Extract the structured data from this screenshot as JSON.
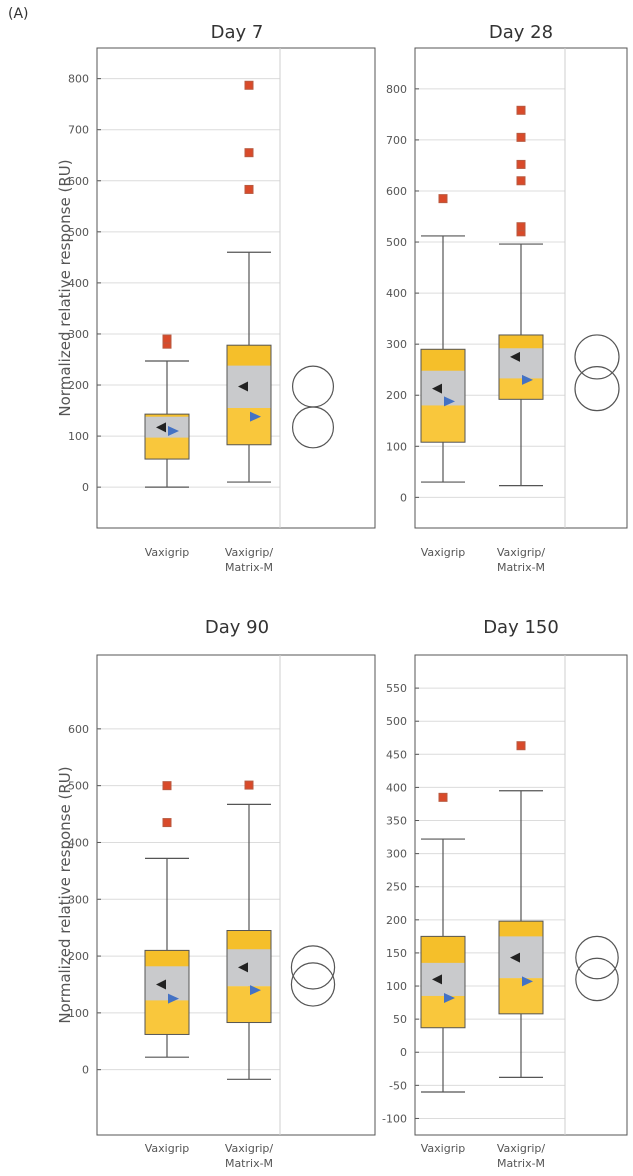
{
  "figure": {
    "panel_label": "(A)"
  },
  "colors": {
    "box_lower": "#f9c73c",
    "box_ci": "#c9cacc",
    "box_upper": "#f5bf2a",
    "box_edge": "#555555",
    "outlier": "#d94a2a",
    "outlier_edge": "#b85a40",
    "mean_marker": "#222222",
    "median_marker": "#4472c4",
    "grid": "#dcdcdc",
    "frame": "#555555"
  },
  "chart_data": [
    {
      "type": "boxplot",
      "title": "Day 7",
      "ylabel": "Normalized relative response (RU)",
      "ylim": [
        -80,
        860
      ],
      "yticks": [
        0,
        100,
        200,
        300,
        400,
        500,
        600,
        700,
        800
      ],
      "categories": [
        "Vaxigrip",
        "Vaxigrip/\nMatrix-M"
      ],
      "category_lines": [
        [
          "Vaxigrip"
        ],
        [
          "Vaxigrip/",
          "Matrix-M"
        ]
      ],
      "boxes": [
        {
          "whisker_low": 0,
          "q1": 55,
          "median": 98,
          "q3": 143,
          "whisker_high": 247,
          "ci_low": 97,
          "ci_high": 138,
          "mean": 117,
          "median_marker": 110,
          "outliers": [
            280,
            290
          ]
        },
        {
          "whisker_low": 10,
          "q1": 83,
          "median": 155,
          "q3": 278,
          "whisker_high": 460,
          "ci_low": 155,
          "ci_high": 238,
          "mean": 197,
          "median_marker": 138,
          "outliers": [
            583,
            655,
            787
          ]
        }
      ],
      "comparison_circles": [
        {
          "center": 197,
          "radius": 40
        },
        {
          "center": 117,
          "radius": 40
        }
      ]
    },
    {
      "type": "boxplot",
      "title": "Day 28",
      "ylabel": "",
      "ylim": [
        -60,
        880
      ],
      "yticks": [
        0,
        100,
        200,
        300,
        400,
        500,
        600,
        700,
        800
      ],
      "categories": [
        "Vaxigrip",
        "Vaxigrip/\nMatrix-M"
      ],
      "category_lines": [
        [
          "Vaxigrip"
        ],
        [
          "Vaxigrip/",
          "Matrix-M"
        ]
      ],
      "boxes": [
        {
          "whisker_low": 30,
          "q1": 108,
          "median": 180,
          "q3": 290,
          "whisker_high": 512,
          "ci_low": 180,
          "ci_high": 248,
          "mean": 213,
          "median_marker": 188,
          "outliers": [
            585
          ]
        },
        {
          "whisker_low": 23,
          "q1": 192,
          "median": 233,
          "q3": 318,
          "whisker_high": 496,
          "ci_low": 233,
          "ci_high": 292,
          "mean": 275,
          "median_marker": 230,
          "outliers": [
            520,
            530,
            620,
            652,
            705,
            758
          ]
        }
      ],
      "comparison_circles": [
        {
          "center": 275,
          "radius": 62
        },
        {
          "center": 213,
          "radius": 62
        }
      ]
    },
    {
      "type": "boxplot",
      "title": "Day 90",
      "ylabel": "Normalized relative response (RU)",
      "ylim": [
        -115,
        730
      ],
      "yticks": [
        0,
        100,
        200,
        300,
        400,
        500,
        600
      ],
      "categories": [
        "Vaxigrip",
        "Vaxigrip/\nMatrix-M"
      ],
      "category_lines": [
        [
          "Vaxigrip"
        ],
        [
          "Vaxigrip/",
          "Matrix-M"
        ]
      ],
      "boxes": [
        {
          "whisker_low": 22,
          "q1": 62,
          "median": 122,
          "q3": 210,
          "whisker_high": 372,
          "ci_low": 122,
          "ci_high": 182,
          "mean": 150,
          "median_marker": 125,
          "outliers": [
            435,
            500
          ]
        },
        {
          "whisker_low": -17,
          "q1": 83,
          "median": 147,
          "q3": 245,
          "whisker_high": 467,
          "ci_low": 147,
          "ci_high": 212,
          "mean": 180,
          "median_marker": 140,
          "outliers": [
            501
          ]
        }
      ],
      "comparison_circles": [
        {
          "center": 180,
          "radius": 38
        },
        {
          "center": 150,
          "radius": 38
        }
      ]
    },
    {
      "type": "boxplot",
      "title": "Day 150",
      "ylabel": "",
      "ylim": [
        -125,
        600
      ],
      "yticks": [
        -100,
        -50,
        0,
        50,
        100,
        150,
        200,
        250,
        300,
        350,
        400,
        450,
        500,
        550
      ],
      "categories": [
        "Vaxigrip",
        "Vaxigrip/\nMatrix-M"
      ],
      "category_lines": [
        [
          "Vaxigrip"
        ],
        [
          "Vaxigrip/",
          "Matrix-M"
        ]
      ],
      "boxes": [
        {
          "whisker_low": -60,
          "q1": 37,
          "median": 85,
          "q3": 175,
          "whisker_high": 322,
          "ci_low": 85,
          "ci_high": 135,
          "mean": 110,
          "median_marker": 82,
          "outliers": [
            385
          ]
        },
        {
          "whisker_low": -38,
          "q1": 58,
          "median": 112,
          "q3": 198,
          "whisker_high": 395,
          "ci_low": 112,
          "ci_high": 175,
          "mean": 143,
          "median_marker": 107,
          "outliers": [
            463
          ]
        }
      ],
      "comparison_circles": [
        {
          "center": 143,
          "radius": 32
        },
        {
          "center": 110,
          "radius": 32
        }
      ]
    }
  ]
}
